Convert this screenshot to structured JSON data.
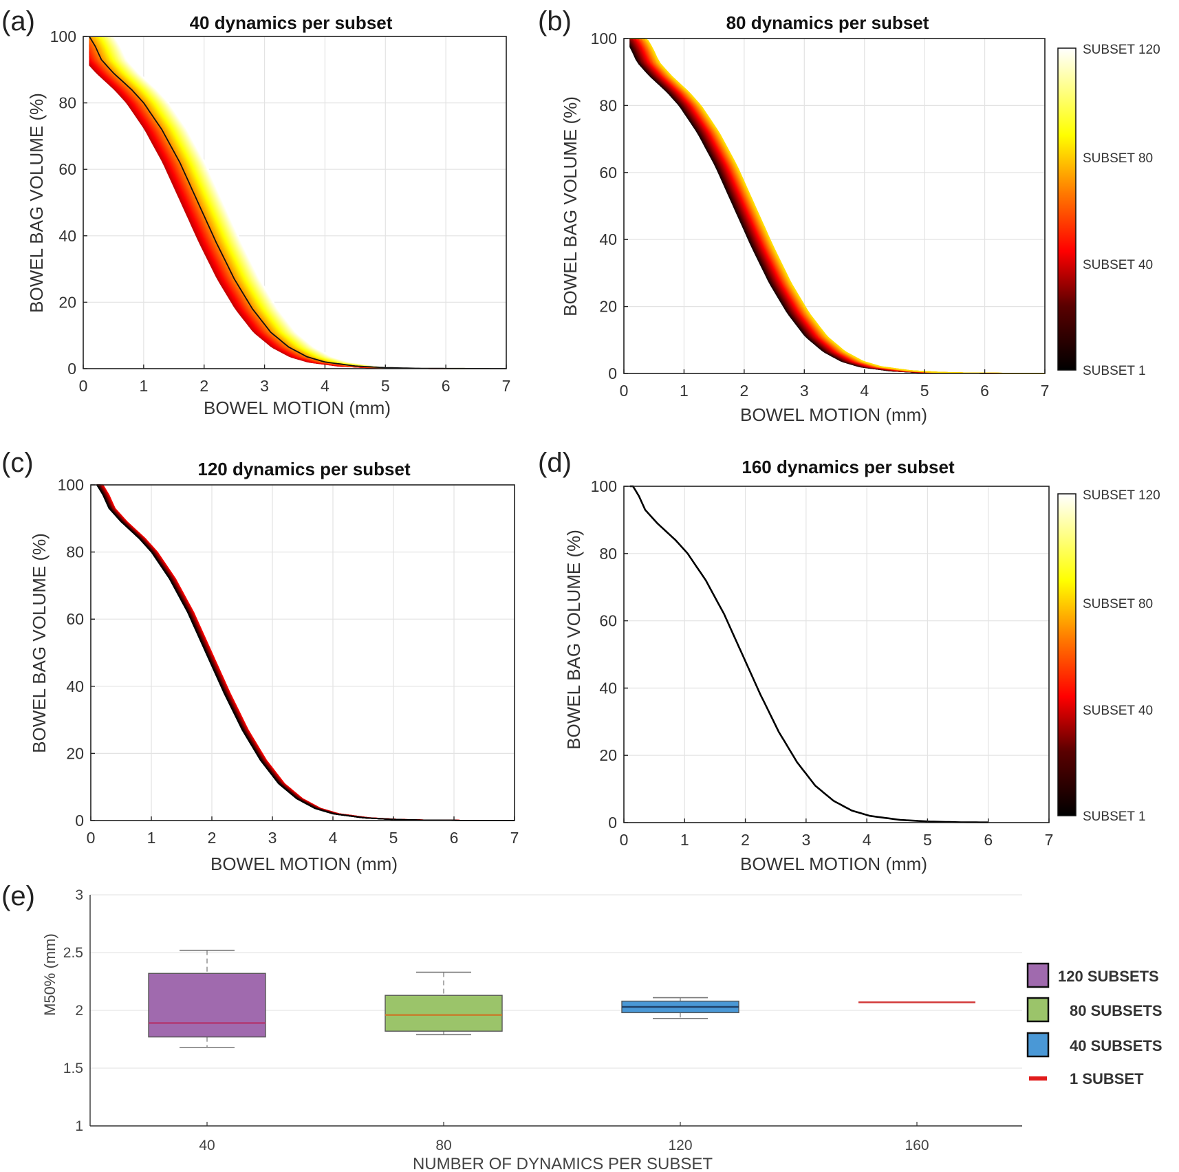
{
  "chart_data": [
    {
      "panel": "(a)",
      "type": "line",
      "title": "40 dynamics per subset",
      "xlabel": "BOWEL MOTION (mm)",
      "ylabel": "BOWEL BAG VOLUME (%)",
      "xlim": [
        0,
        7
      ],
      "ylim": [
        0,
        100
      ],
      "xticks": [
        0,
        1,
        2,
        3,
        4,
        5,
        6,
        7
      ],
      "yticks": [
        0,
        20,
        40,
        60,
        80,
        100
      ],
      "grid": true,
      "base_curve": {
        "x": [
          0.1,
          0.2,
          0.3,
          0.5,
          0.8,
          1.0,
          1.3,
          1.6,
          1.9,
          2.2,
          2.5,
          2.8,
          3.1,
          3.4,
          3.7,
          4.0,
          4.5,
          5.0,
          5.5,
          6.0,
          6.5,
          7.0
        ],
        "y": [
          100,
          97,
          93,
          89,
          84,
          80,
          72,
          62,
          50,
          38,
          27,
          18,
          11,
          6.5,
          3.6,
          2.0,
          0.8,
          0.3,
          0.1,
          0.05,
          0.02,
          0
        ]
      },
      "series_count": 120,
      "shift_range_mm": [
        -0.28,
        0.42
      ],
      "highlight_series": {
        "name": "SUBSET 1",
        "shift_mm": 0.0
      }
    },
    {
      "panel": "(b)",
      "type": "line",
      "title": "80 dynamics per subset",
      "xlabel": "BOWEL  MOTION (mm)",
      "ylabel": "BOWEL BAG VOLUME (%)",
      "xlim": [
        0,
        7
      ],
      "ylim": [
        0,
        100
      ],
      "xticks": [
        0,
        1,
        2,
        3,
        4,
        5,
        6,
        7
      ],
      "yticks": [
        0,
        20,
        40,
        60,
        80,
        100
      ],
      "grid": true,
      "series_count": 80,
      "shift_range_mm": [
        -0.08,
        0.28
      ]
    },
    {
      "panel": "(c)",
      "type": "line",
      "title": "120 dynamics per subset",
      "xlabel": "BOWEL MOTION (mm)",
      "ylabel": "BOWEL BAG VOLUME (%)",
      "xlim": [
        0,
        7
      ],
      "ylim": [
        0,
        100
      ],
      "xticks": [
        0,
        1,
        2,
        3,
        4,
        5,
        6,
        7
      ],
      "yticks": [
        0,
        20,
        40,
        60,
        80,
        100
      ],
      "grid": true,
      "series_count": 40,
      "shift_range_mm": [
        0.0,
        0.1
      ]
    },
    {
      "panel": "(d)",
      "type": "line",
      "title": "160 dynamics per subset",
      "xlabel": "BOWEL MOTION (mm)",
      "ylabel": "BOWEL BAG VOLUME (%)",
      "xlim": [
        0,
        7
      ],
      "ylim": [
        0,
        100
      ],
      "xticks": [
        0,
        1,
        2,
        3,
        4,
        5,
        6,
        7
      ],
      "yticks": [
        0,
        20,
        40,
        60,
        80,
        100
      ],
      "grid": true,
      "series_count": 1,
      "shift_range_mm": [
        0.05,
        0.05
      ],
      "x_end_mm": 6.0
    },
    {
      "panel": "(e)",
      "type": "box",
      "title": "",
      "xlabel": "NUMBER OF DYNAMICS PER SUBSET",
      "ylabel": "M50% (mm)",
      "ylim": [
        1,
        3
      ],
      "yticks": [
        "1",
        "1.5",
        "2",
        "2.5",
        "3"
      ],
      "ytick_values": [
        1,
        1.5,
        2,
        2.5,
        3
      ],
      "categories": [
        "40",
        "80",
        "120",
        "160"
      ],
      "boxes": [
        {
          "category": "40",
          "series": "120 SUBSETS",
          "whisker_low": 1.68,
          "q1": 1.77,
          "median": 1.89,
          "q3": 2.32,
          "whisker_high": 2.52,
          "color": "#a06aae",
          "median_color": "#b2356f"
        },
        {
          "category": "80",
          "series": "80 SUBSETS",
          "whisker_low": 1.79,
          "q1": 1.82,
          "median": 1.96,
          "q3": 2.13,
          "whisker_high": 2.33,
          "color": "#9bc46a",
          "median_color": "#c97a2a"
        },
        {
          "category": "120",
          "series": "40 SUBSETS",
          "whisker_low": 1.93,
          "q1": 1.98,
          "median": 2.03,
          "q3": 2.08,
          "whisker_high": 2.11,
          "color": "#4a98d6",
          "median_color": "#1e3f66"
        },
        {
          "category": "160",
          "series": "1 SUBSET",
          "median": 2.07,
          "color": "#d23a3a"
        }
      ],
      "legend": [
        {
          "label": "120 SUBSETS",
          "color": "#a06aae",
          "kind": "box"
        },
        {
          "label": "80 SUBSETS",
          "color": "#9bc46a",
          "kind": "box"
        },
        {
          "label": "40 SUBSETS",
          "color": "#4a98d6",
          "kind": "box"
        },
        {
          "label": "1 SUBSET",
          "color": "#e11b1b",
          "kind": "line"
        }
      ]
    }
  ],
  "colorbar": {
    "colormap": "hot",
    "labels": [
      "SUBSET 120",
      "SUBSET 80",
      "SUBSET 40",
      "SUBSET 1"
    ],
    "label_values": [
      120,
      80,
      40,
      1
    ],
    "range": [
      1,
      120
    ]
  }
}
